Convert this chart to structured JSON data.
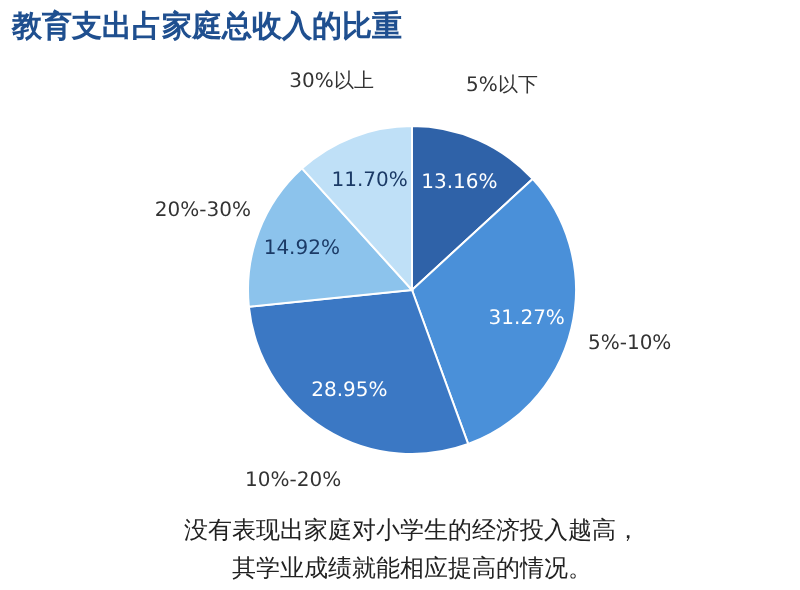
{
  "chart_data": {
    "type": "pie",
    "title": "教育支出占家庭总收入的比重",
    "categories": [
      "5%以下",
      "5%-10%",
      "10%-20%",
      "20%-30%",
      "30%以上"
    ],
    "values": [
      13.16,
      31.27,
      28.95,
      14.92,
      11.7
    ],
    "value_labels": [
      "13.16%",
      "31.27%",
      "28.95%",
      "14.92%",
      "11.70%"
    ],
    "colors": [
      "#2f62a8",
      "#4a90d9",
      "#3b78c4",
      "#8cc3ec",
      "#bfe0f7"
    ],
    "annotations": [
      "没有表现出家庭对小学生的经济投入越高，",
      "其学业成绩就能相应提高的情况。"
    ],
    "legend": false
  }
}
